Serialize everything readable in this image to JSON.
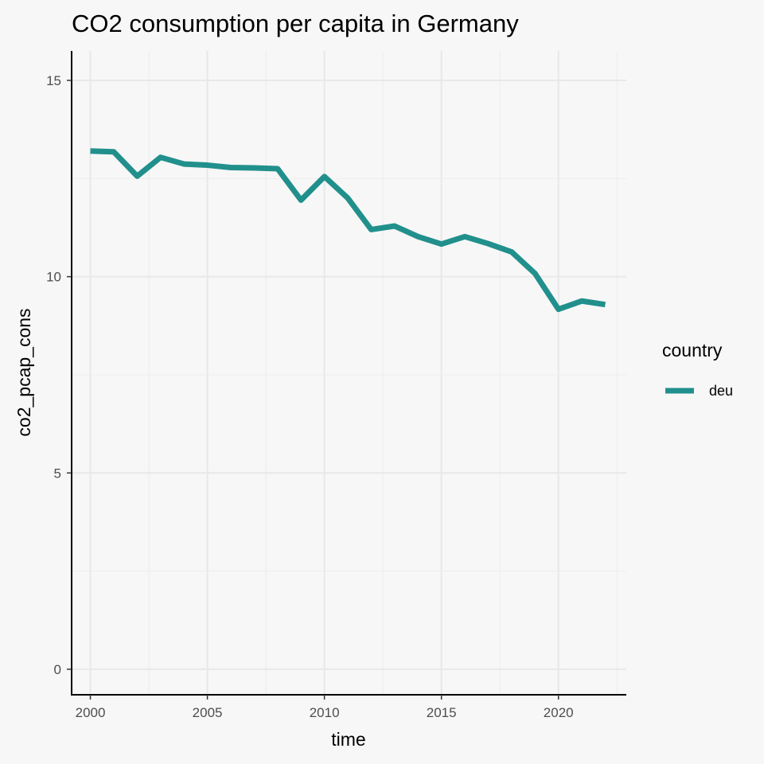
{
  "chart_data": {
    "type": "line",
    "title": "CO2 consumption per capita in Germany",
    "xlabel": "time",
    "ylabel": "co2_pcap_cons",
    "xlim": [
      1999.2,
      2022.9
    ],
    "ylim": [
      -0.65,
      15.75
    ],
    "x_ticks": [
      2000,
      2005,
      2010,
      2015,
      2020
    ],
    "y_ticks": [
      0,
      5,
      10,
      15
    ],
    "grid": true,
    "legend_title": "country",
    "legend_position": "right",
    "series": [
      {
        "name": "deu",
        "color": "#21908c",
        "x": [
          2000,
          2001,
          2002,
          2003,
          2004,
          2005,
          2006,
          2007,
          2008,
          2009,
          2010,
          2011,
          2012,
          2013,
          2014,
          2015,
          2016,
          2017,
          2018,
          2019,
          2020,
          2021,
          2022
        ],
        "y": [
          13.2,
          13.18,
          12.56,
          13.04,
          12.87,
          12.84,
          12.78,
          12.77,
          12.75,
          11.95,
          12.55,
          12.0,
          11.2,
          11.29,
          11.02,
          10.83,
          11.02,
          10.84,
          10.63,
          10.08,
          9.17,
          9.38,
          9.29
        ]
      }
    ]
  }
}
